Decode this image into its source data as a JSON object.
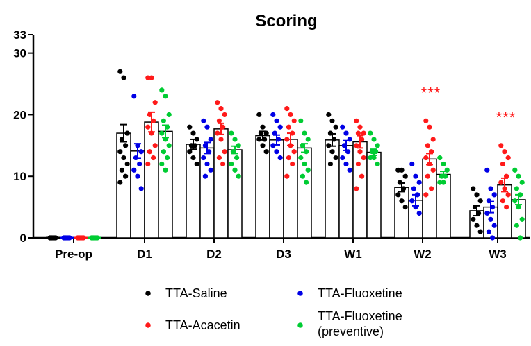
{
  "chart_data": {
    "type": "bar",
    "title": "Scoring",
    "xlabel": "",
    "ylabel": "",
    "ylim": [
      0,
      33
    ],
    "yticks": [
      0,
      10,
      20,
      30,
      33
    ],
    "categories": [
      "Pre-op",
      "D1",
      "D2",
      "D3",
      "W1",
      "W2",
      "W3"
    ],
    "grid": false,
    "legend_position": "bottom",
    "error_bars": "SEM",
    "series": [
      {
        "name": "TTA-Saline",
        "color": "#000000",
        "values": [
          0,
          17,
          15.2,
          16.6,
          15.9,
          8.2,
          4.4
        ],
        "sem": [
          0,
          1.4,
          0.8,
          0.7,
          1.0,
          0.7,
          0.8
        ],
        "points": [
          [
            0,
            0,
            0,
            0,
            0,
            0,
            0,
            0,
            0,
            0,
            0,
            0
          ],
          [
            27,
            26,
            17,
            16,
            15,
            14,
            13,
            12,
            11,
            10,
            9
          ],
          [
            18,
            17,
            16,
            15,
            15,
            14,
            13,
            12
          ],
          [
            20,
            18,
            17,
            17,
            16,
            16,
            15,
            14
          ],
          [
            20,
            19,
            18,
            17,
            16,
            15,
            14,
            13,
            12
          ],
          [
            11,
            11,
            10,
            9,
            8,
            7,
            6,
            5
          ],
          [
            8,
            7,
            6,
            5,
            4,
            3,
            2,
            1
          ]
        ]
      },
      {
        "name": "TTA-Acacetin",
        "color": "#0000e6",
        "values": [
          0,
          14.1,
          14.6,
          15.9,
          15.0,
          6.1,
          5.0
        ],
        "sem": [
          0,
          1.2,
          0.9,
          0.8,
          0.8,
          0.9,
          0.9
        ],
        "points": [
          [
            0,
            0,
            0,
            0,
            0,
            0,
            0,
            0,
            0,
            0,
            0,
            0
          ],
          [
            23,
            15,
            14,
            13,
            12,
            11,
            10,
            8
          ],
          [
            19,
            18,
            16,
            15,
            14,
            13,
            12,
            11,
            10
          ],
          [
            20,
            19,
            18,
            17,
            16,
            15,
            14,
            13
          ],
          [
            18,
            17,
            16,
            15,
            14,
            13,
            12,
            11
          ],
          [
            12,
            10,
            9,
            8,
            7,
            6,
            5,
            4
          ],
          [
            11,
            8,
            7,
            6,
            5,
            4,
            3,
            2,
            1,
            0
          ]
        ]
      },
      {
        "name": "TTA-Fluoxetine",
        "color": "#ff1a1a",
        "values": [
          0,
          18.8,
          17.7,
          16,
          15.6,
          12.8,
          8.6
        ],
        "sem": [
          0,
          1.6,
          0.9,
          1.0,
          1.0,
          0.9,
          1.1
        ],
        "points": [
          [
            0,
            0,
            0,
            0,
            0,
            0,
            0,
            0,
            0,
            0,
            0,
            0
          ],
          [
            26,
            26,
            22,
            20,
            19,
            18,
            17,
            15,
            14,
            13,
            12
          ],
          [
            22,
            21,
            20,
            19,
            18,
            17,
            16,
            14,
            13,
            12
          ],
          [
            21,
            20,
            19,
            18,
            17,
            16,
            15,
            14,
            13,
            12,
            10
          ],
          [
            19,
            18,
            17,
            17,
            16,
            15,
            14,
            13,
            12,
            10,
            8
          ],
          [
            19,
            18,
            16,
            15,
            14,
            13,
            12,
            11,
            10,
            8,
            7
          ],
          [
            15,
            14,
            13,
            12,
            10,
            9,
            8,
            7,
            6,
            5
          ]
        ]
      },
      {
        "name": "TTA-Fluoxetine (preventive)",
        "color": "#00cc33",
        "values": [
          0,
          17.3,
          14.3,
          14.6,
          13.9,
          10.3,
          6.2
        ],
        "sem": [
          0,
          1.0,
          0.6,
          0.7,
          0.5,
          0.5,
          0.8
        ],
        "points": [
          [
            0,
            0,
            0,
            0,
            0,
            0,
            0,
            0,
            0,
            0,
            0,
            0
          ],
          [
            24,
            23,
            20,
            19,
            18,
            17,
            16,
            15,
            14,
            13,
            12,
            11
          ],
          [
            17,
            16,
            15,
            14,
            13,
            12,
            11,
            10
          ],
          [
            19,
            17,
            16,
            15,
            14,
            13,
            12,
            11,
            10,
            9
          ],
          [
            17,
            16,
            15,
            14,
            14,
            13,
            13,
            12
          ],
          [
            13,
            12,
            11,
            10,
            10,
            9,
            9
          ],
          [
            11,
            10,
            9,
            8,
            7,
            6,
            5,
            3,
            2,
            0
          ]
        ]
      }
    ],
    "annotations": [
      {
        "category": "W2",
        "series": "TTA-Fluoxetine",
        "text": "***"
      },
      {
        "category": "W3",
        "series": "TTA-Fluoxetine",
        "text": "***"
      }
    ]
  },
  "legend": {
    "items": [
      {
        "label": "TTA-Saline",
        "lines": [
          "TTA-Saline"
        ]
      },
      {
        "label": "TTA-Fluoxetine",
        "lines": [
          "TTA-Fluoxetine"
        ]
      },
      {
        "label": "TTA-Acacetin",
        "lines": [
          "TTA-Acacetin"
        ]
      },
      {
        "label": "TTA-Fluoxetine (preventive)",
        "lines": [
          "TTA-Fluoxetine",
          "(preventive)"
        ]
      }
    ]
  }
}
